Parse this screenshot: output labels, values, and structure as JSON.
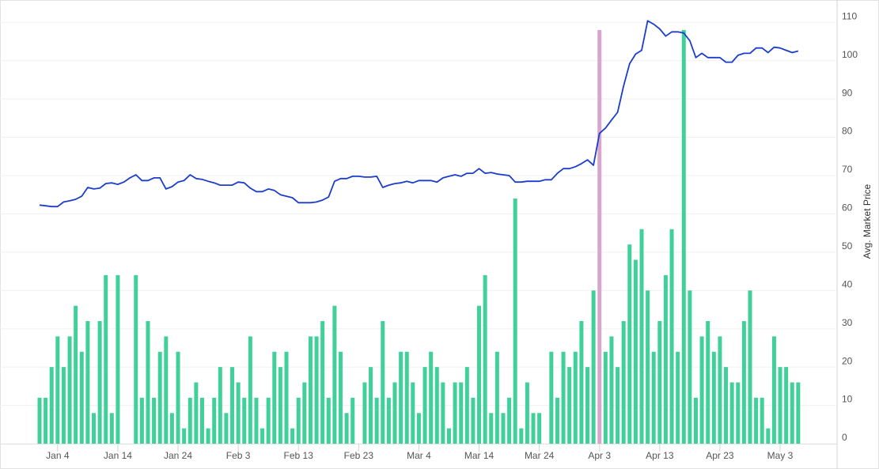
{
  "chart_data": {
    "type": "combo",
    "y_axis_label": "Avg. Market Price",
    "categories": [
      null,
      null,
      null,
      "Jan 4",
      null,
      null,
      null,
      null,
      null,
      null,
      null,
      null,
      null,
      "Jan 14",
      null,
      null,
      null,
      null,
      null,
      null,
      null,
      null,
      null,
      "Jan 24",
      null,
      null,
      null,
      null,
      null,
      null,
      null,
      null,
      null,
      "Feb 3",
      null,
      null,
      null,
      null,
      null,
      null,
      null,
      null,
      null,
      "Feb 13",
      null,
      null,
      null,
      null,
      null,
      null,
      null,
      null,
      null,
      "Feb 23",
      null,
      null,
      null,
      null,
      null,
      null,
      null,
      null,
      null,
      "Mar 4",
      null,
      null,
      null,
      null,
      null,
      null,
      null,
      null,
      null,
      "Mar 14",
      null,
      null,
      null,
      null,
      null,
      null,
      null,
      null,
      null,
      "Mar 24",
      null,
      null,
      null,
      null,
      null,
      null,
      null,
      null,
      null,
      "Apr 3",
      null,
      null,
      null,
      null,
      null,
      null,
      null,
      null,
      null,
      "Apr 13",
      null,
      null,
      null,
      null,
      null,
      null,
      null,
      null,
      null,
      "Apr 23",
      null,
      null,
      null,
      null,
      null,
      null,
      null,
      null,
      null,
      "May 3",
      null,
      null,
      null
    ],
    "series": [
      {
        "type": "bar",
        "color": "#3fd199",
        "highlight": {
          "index": 93,
          "color": "#d8a5cd"
        },
        "values": [
          12,
          12,
          20,
          28,
          20,
          28,
          36,
          24,
          32,
          8,
          32,
          44,
          8,
          44,
          0,
          0,
          44,
          12,
          32,
          12,
          24,
          28,
          8,
          24,
          4,
          12,
          16,
          12,
          4,
          12,
          20,
          8,
          20,
          16,
          12,
          28,
          12,
          4,
          12,
          24,
          20,
          24,
          4,
          12,
          16,
          28,
          28,
          32,
          12,
          36,
          24,
          8,
          12,
          0,
          16,
          20,
          12,
          32,
          12,
          16,
          24,
          24,
          16,
          8,
          20,
          24,
          20,
          16,
          4,
          16,
          16,
          20,
          12,
          36,
          44,
          8,
          24,
          8,
          12,
          64,
          4,
          16,
          8,
          8,
          0,
          24,
          12,
          24,
          20,
          24,
          32,
          20,
          40,
          108,
          24,
          28,
          20,
          32,
          52,
          48,
          56,
          40,
          24,
          32,
          44,
          56,
          24,
          108,
          40,
          12,
          28,
          32,
          24,
          28,
          20,
          16,
          16,
          32,
          40,
          12,
          12,
          4,
          28,
          20,
          20,
          16,
          16
        ]
      },
      {
        "type": "line",
        "color": "#1b3dcc",
        "values": [
          62.3,
          62.1,
          61.9,
          61.9,
          63.1,
          63.4,
          63.8,
          64.6,
          66.9,
          66.5,
          66.7,
          67.9,
          68.1,
          67.7,
          68.3,
          69.4,
          70.2,
          68.7,
          68.7,
          69.4,
          69.4,
          66.5,
          67.1,
          68.3,
          68.7,
          70.2,
          69.2,
          69.0,
          68.5,
          68.1,
          67.5,
          67.5,
          67.5,
          68.3,
          68.1,
          66.7,
          65.8,
          65.8,
          66.5,
          66.1,
          65.0,
          64.6,
          64.2,
          62.9,
          62.9,
          62.9,
          63.1,
          63.6,
          64.4,
          68.5,
          69.2,
          69.2,
          69.8,
          69.8,
          69.6,
          69.6,
          69.8,
          66.9,
          67.5,
          67.9,
          68.1,
          68.5,
          68.1,
          68.7,
          68.7,
          68.7,
          68.3,
          69.4,
          69.8,
          70.2,
          69.8,
          70.6,
          70.6,
          71.8,
          70.6,
          70.8,
          70.4,
          70.2,
          70.0,
          68.3,
          68.3,
          68.5,
          68.5,
          68.5,
          68.9,
          68.9,
          70.6,
          71.8,
          71.8,
          72.3,
          73.1,
          74.1,
          72.7,
          81.0,
          82.4,
          84.5,
          86.5,
          93.4,
          99.2,
          101.7,
          102.7,
          110.4,
          109.5,
          108.3,
          106.4,
          107.5,
          107.5,
          107.2,
          105.2,
          100.8,
          101.9,
          100.8,
          100.8,
          100.8,
          99.6,
          99.6,
          101.4,
          101.9,
          101.9,
          103.3,
          103.3,
          102.1,
          103.5,
          103.3,
          102.7,
          102.1,
          102.5
        ]
      }
    ],
    "ylim": [
      0,
      115
    ],
    "yticks": [
      0,
      10,
      20,
      30,
      40,
      50,
      60,
      70,
      80,
      90,
      100,
      110
    ],
    "grid": true
  }
}
